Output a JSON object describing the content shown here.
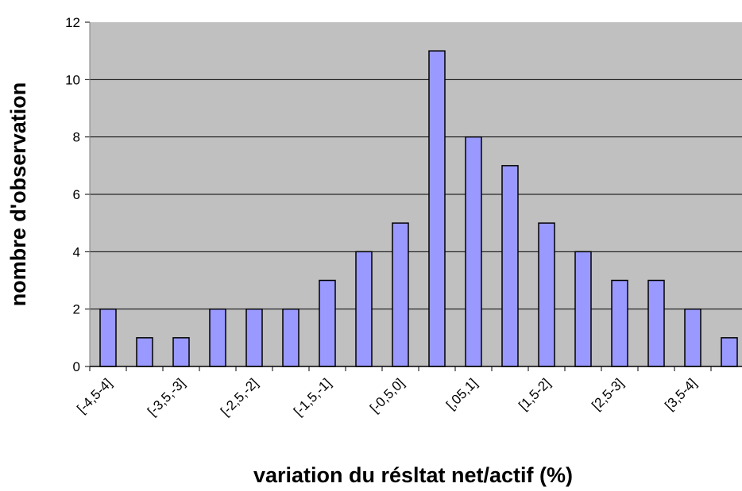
{
  "chart_data": {
    "type": "bar",
    "x_label": "variation du résltat net/actif (%)",
    "y_label": "nombre d'observation",
    "categories": [
      "[-4,5-4]",
      null,
      "[-3,5,-3]",
      null,
      "[-2,5,-2]",
      null,
      "[-1,5,-1]",
      null,
      "[-0,5,0]",
      null,
      "[,05,1]",
      null,
      "[1,5-2]",
      null,
      "[2,5-3]",
      null,
      "[3,5-4]",
      null
    ],
    "values": [
      2,
      1,
      1,
      2,
      2,
      2,
      3,
      4,
      5,
      11,
      8,
      7,
      5,
      4,
      3,
      3,
      2,
      1
    ],
    "color": "#9999ff",
    "ylim": [
      0,
      12
    ],
    "yticks": [
      0,
      2,
      4,
      6,
      8,
      10,
      12
    ],
    "grid": true
  }
}
